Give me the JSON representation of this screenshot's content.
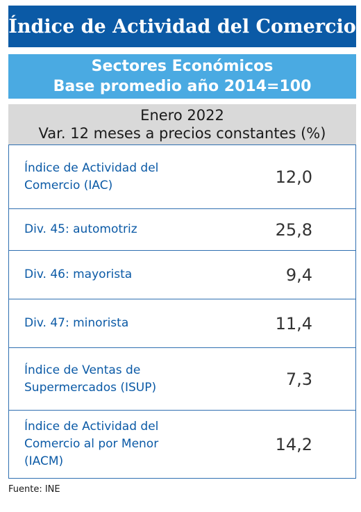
{
  "header": {
    "title": "Índice de Actividad del Comercio"
  },
  "subheader": {
    "line1": "Sectores Económicos",
    "line2": "Base promedio año 2014=100"
  },
  "period": {
    "line1": "Enero 2022",
    "line2": "Var. 12 meses a precios constantes (%)"
  },
  "rows": [
    {
      "label": "Índice de Actividad del Comercio (IAC)",
      "value": "12,0"
    },
    {
      "label": "Div. 45: automotriz",
      "value": "25,8"
    },
    {
      "label": "Div. 46: mayorista",
      "value": "9,4"
    },
    {
      "label": "Div. 47: minorista",
      "value": "11,4"
    },
    {
      "label": "Índice de Ventas de Supermercados (ISUP)",
      "value": "7,3"
    },
    {
      "label": "Índice de Actividad del Comercio al por Menor (IACM)",
      "value": "14,2"
    }
  ],
  "footer": {
    "source": "Fuente: INE"
  },
  "colors": {
    "title_bg": "#0b5aa6",
    "subheader_bg": "#4aaae2",
    "period_bg": "#d9d9d9",
    "label_text": "#0b5aa6",
    "border": "#2f6fb0"
  }
}
